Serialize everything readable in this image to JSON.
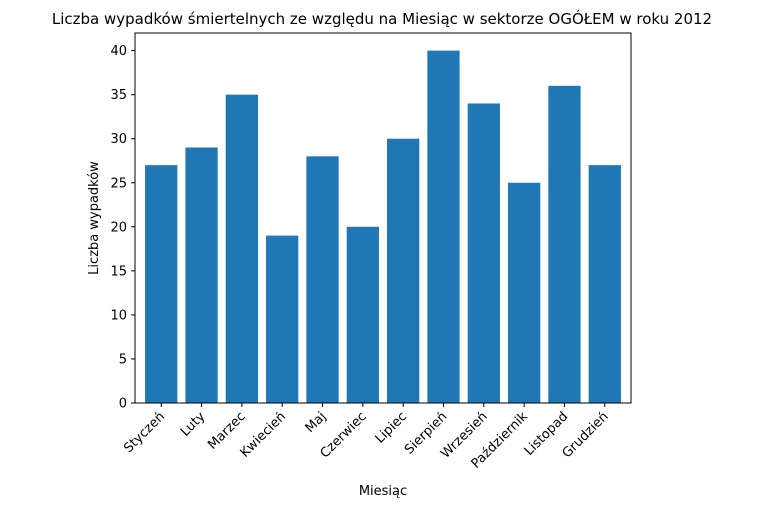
{
  "chart_data": {
    "type": "bar",
    "title": "Liczba wypadków śmiertelnych ze względu na Miesiąc w sektorze OGÓŁEM   w roku 2012",
    "xlabel": "Miesiąc",
    "ylabel": "Liczba wypadków",
    "categories": [
      "Styczeń",
      "Luty",
      "Marzec",
      "Kwiecień",
      "Maj",
      "Czerwiec",
      "Lipiec",
      "Sierpień",
      "Wrzesień",
      "Październik",
      "Listopad",
      "Grudzień"
    ],
    "values": [
      27,
      29,
      35,
      19,
      28,
      20,
      30,
      40,
      34,
      25,
      36,
      27
    ],
    "ylim": [
      0,
      42
    ],
    "yticks": [
      0,
      5,
      10,
      15,
      20,
      25,
      30,
      35,
      40
    ],
    "bar_color": "#1f77b4",
    "grid": false,
    "legend": "none"
  }
}
